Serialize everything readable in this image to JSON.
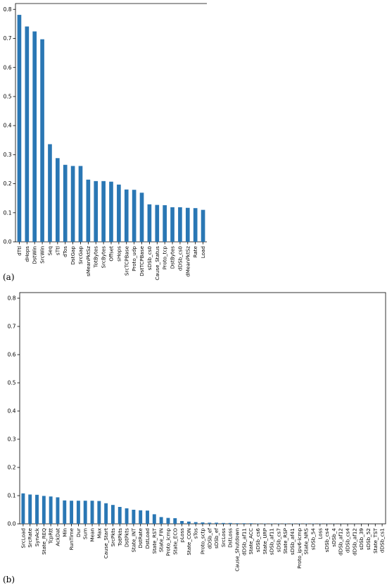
{
  "figure": {
    "label_a": "(a)",
    "label_b": "(b)",
    "bar_color": "#2a77b4"
  },
  "chart_data": [
    {
      "type": "bar",
      "panel": "(a)",
      "title": "",
      "xlabel": "",
      "ylabel": "",
      "ylim": [
        0,
        0.82
      ],
      "yticks": [
        0.0,
        0.1,
        0.2,
        0.3,
        0.4,
        0.5,
        0.6,
        0.7,
        0.8
      ],
      "categories": [
        "dTtl",
        "dHops",
        "DstWin",
        "SrcWin",
        "Seq",
        "sTtl",
        "dTos",
        "DstGap",
        "SrcGap",
        "sMeanPktSz",
        "TotBytes",
        "SrcBytes",
        "Offset",
        "sHops",
        "SrcTCPBase",
        "Proto_udp",
        "DstTCPBase",
        "sDSb_cs0",
        "Cause_Status",
        "Proto_tcp",
        "DstBytes",
        "dDSb_cs0",
        "dMeanPktSz",
        "Rate",
        "Load"
      ],
      "values": [
        0.781,
        0.741,
        0.724,
        0.697,
        0.336,
        0.288,
        0.265,
        0.261,
        0.261,
        0.214,
        0.209,
        0.209,
        0.207,
        0.197,
        0.18,
        0.179,
        0.169,
        0.129,
        0.127,
        0.126,
        0.119,
        0.119,
        0.117,
        0.116,
        0.11
      ]
    },
    {
      "type": "bar",
      "panel": "(b)",
      "title": "",
      "xlabel": "",
      "ylabel": "",
      "ylim": [
        0,
        0.82
      ],
      "yticks": [
        0.0,
        0.1,
        0.2,
        0.3,
        0.4,
        0.5,
        0.6,
        0.7,
        0.8
      ],
      "categories": [
        "SrcLoad",
        "SrcRate",
        "SynAck",
        "State_REQ",
        "TcpRtt",
        "AckDat",
        "Min",
        "RunTime",
        "Dur",
        "Sum",
        "Mean",
        "Max",
        "Cause_Start",
        "SrcPkts",
        "TotPkts",
        "DstPkts",
        "State_INT",
        "DstRate",
        "DstLoad",
        "State_RST",
        "State_FIN",
        "Proto_icmp",
        "State_ECO",
        "pLoss",
        "State_CON",
        "sTos",
        "Proto_sctp",
        "dDSb_ef",
        "sDSb_ef",
        "SrcLoss",
        "DstLoss",
        "Cause_Shutdown",
        "dDSb_af11",
        "State_ACC",
        "sDSb_cs6",
        "State_URP",
        "sDSb_af11",
        "sDSb_cs7",
        "State_RSP",
        "sDSb_af41",
        "Proto_ipv6-icmp",
        "State_NRS",
        "sDSb_54",
        "Loss",
        "sDSb_cs4",
        "sDSb_4",
        "dDSb_af12",
        "dDSb_cs4",
        "dDSb_af12",
        "sDSb_39",
        "sDSb_52",
        "State_TST",
        "dDSb_cs1"
      ],
      "values": [
        0.108,
        0.104,
        0.103,
        0.099,
        0.097,
        0.094,
        0.083,
        0.082,
        0.082,
        0.082,
        0.082,
        0.081,
        0.073,
        0.067,
        0.06,
        0.055,
        0.05,
        0.048,
        0.047,
        0.034,
        0.024,
        0.021,
        0.02,
        0.01,
        0.008,
        0.006,
        0.005,
        0.004,
        0.004,
        0.003,
        0.003,
        0.002,
        0.002,
        0.002,
        0.001,
        0.001,
        0.001,
        0.001,
        0.001,
        0.001,
        0.001,
        0.001,
        0.001,
        0.0008,
        0.0006,
        0.0005,
        0.0004,
        0.0003,
        0.0003,
        0.0002,
        0.0002,
        0.0001,
        0.0001
      ]
    }
  ]
}
